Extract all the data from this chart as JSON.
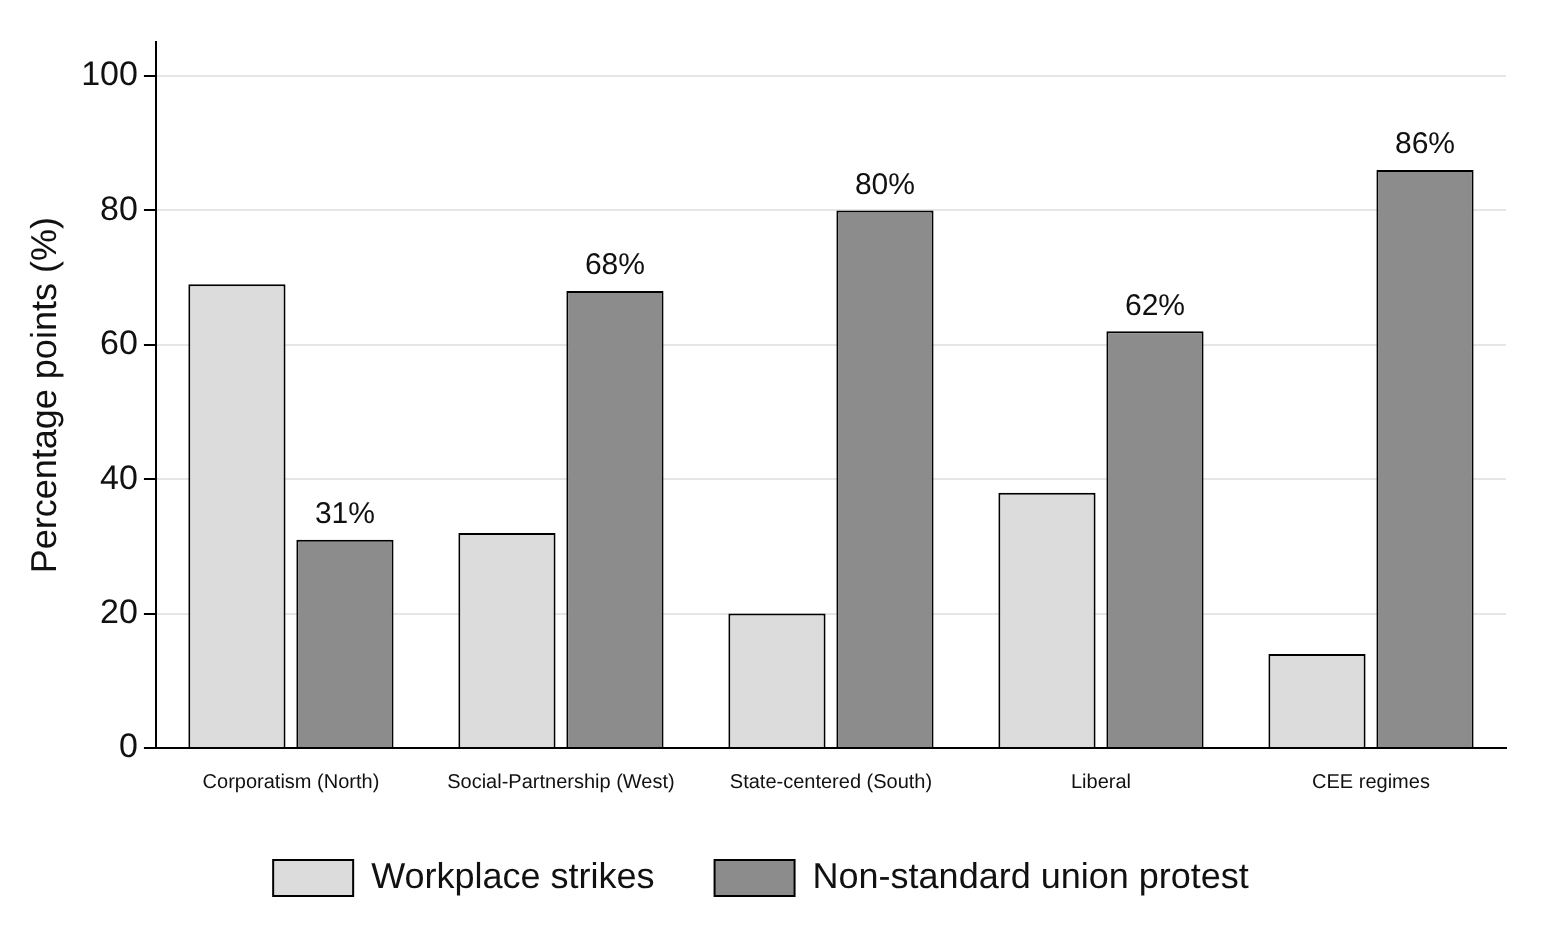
{
  "chart_data": {
    "type": "bar",
    "ylabel": "Percentage points (%)",
    "categories": [
      "Corporatism (North)",
      "Social-Partnership (West)",
      "State-centered (South)",
      "Liberal",
      "CEE regimes"
    ],
    "series": [
      {
        "name": "Workplace strikes",
        "color": "#dcdcdc",
        "values": [
          69,
          32,
          20,
          38,
          14
        ]
      },
      {
        "name": "Non-standard union protest",
        "color": "#8c8c8c",
        "values": [
          31,
          68,
          80,
          62,
          86
        ],
        "value_labels": [
          "31%",
          "68%",
          "80%",
          "62%",
          "86%"
        ]
      }
    ],
    "ylim": [
      0,
      105
    ],
    "yticks": [
      0,
      20,
      40,
      60,
      80,
      100
    ],
    "grid": "y",
    "legend": "bottom"
  }
}
